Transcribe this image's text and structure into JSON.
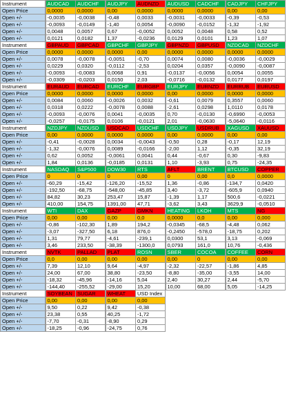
{
  "labels": {
    "instrument": "Instrument",
    "open_price": "Open Price",
    "open_pm": "Open +/-"
  },
  "colors": {
    "green": "#00b050",
    "red": "#ff0000",
    "orange_open_price": "#ffc000",
    "blue_label": "#bdd7ee"
  },
  "blocks": [
    {
      "instruments": [
        {
          "name": "AUDCAD",
          "color": "green"
        },
        {
          "name": "AUDCHF",
          "color": "green"
        },
        {
          "name": "AUDJPY",
          "color": "green"
        },
        {
          "name": "AUDNZD",
          "color": "red"
        },
        {
          "name": "AUDUSD",
          "color": "green"
        },
        {
          "name": "CADCHF",
          "color": "green"
        },
        {
          "name": "CADJPY",
          "color": "green"
        },
        {
          "name": "CHFJPY",
          "color": "green"
        }
      ],
      "open_price": [
        "0,0000",
        "0,0000",
        "0,00",
        "0,0000",
        "0,0000",
        "0,0000",
        "0,00",
        "0,00"
      ],
      "rows": [
        [
          "-0,0035",
          "-0,0038",
          "-0,48",
          "0,0033",
          "-0,0031",
          "-0,0033",
          "-0,39",
          "-0,53"
        ],
        [
          "-0,0093",
          "-0,0149",
          "-1,40",
          "0,0054",
          "-0,0090",
          "-0,0152",
          "-1,32",
          "-1,92"
        ],
        [
          "0,0048",
          "0,0057",
          "0,67",
          "-0,0052",
          "0,0052",
          "0,0048",
          "0,58",
          "0,52"
        ],
        [
          "0,0121",
          "0,0182",
          "1,37",
          "-0,0236",
          "0,0129",
          "0,0101",
          "1,23",
          "1,07"
        ]
      ]
    },
    {
      "instruments": [
        {
          "name": "GBPAUD",
          "color": "red"
        },
        {
          "name": "GBPCAD",
          "color": "red"
        },
        {
          "name": "GBPCHF",
          "color": "green"
        },
        {
          "name": "GBPJPY",
          "color": "green"
        },
        {
          "name": "GBPNZD",
          "color": "red"
        },
        {
          "name": "GBPUSD",
          "color": "red"
        },
        {
          "name": "NZDCAD",
          "color": "green"
        },
        {
          "name": "NZDCHF",
          "color": "green"
        }
      ],
      "open_price": [
        "0,0000",
        "0,0000",
        "0,0000",
        "0,00",
        "0,0000",
        "0,0000",
        "0,0000",
        "0,0000"
      ],
      "rows": [
        [
          "0,0078",
          "-0,0078",
          "-0,0051",
          "-0,70",
          "0,0074",
          "0,0080",
          "-0,0036",
          "-0,0029"
        ],
        [
          "0,0229",
          "0,0320",
          "-0,0112",
          "-2,53",
          "0,0204",
          "0,0357",
          "-0,0090",
          "-0,0087"
        ],
        [
          "-0,0093",
          "-0,0083",
          "0,0068",
          "0,91",
          "-0,0137",
          "-0,0056",
          "0,0054",
          "0,0055"
        ],
        [
          "-0,0309",
          "-0,0203",
          "0,0150",
          "2,03",
          "-0,0716",
          "-0,0132",
          "0,0177",
          "0,0197"
        ]
      ]
    },
    {
      "instruments": [
        {
          "name": "EURAUD",
          "color": "red"
        },
        {
          "name": "EURCAD",
          "color": "red"
        },
        {
          "name": "EURCHF",
          "color": "green"
        },
        {
          "name": "EURGBP",
          "color": "red"
        },
        {
          "name": "EURJPY",
          "color": "green"
        },
        {
          "name": "EURNZD",
          "color": "red"
        },
        {
          "name": "EURRUB",
          "color": "red"
        },
        {
          "name": "EURUSD",
          "color": "red"
        }
      ],
      "open_price": [
        "0,0000",
        "0,0000",
        "0,0000",
        "0,0000",
        "0,00",
        "0,0000",
        "0,0000",
        "0,0000"
      ],
      "rows": [
        [
          "0,0084",
          "0,0060",
          "-0,0026",
          "0,0032",
          "-0,61",
          "0,0079",
          "0,3557",
          "0,0060"
        ],
        [
          "0,0318",
          "0,0222",
          "-0,0078",
          "0,0088",
          "-2,61",
          "0,0298",
          "1,0110",
          "0,0178"
        ],
        [
          "-0,0093",
          "-0,0076",
          "0,0041",
          "-0,0035",
          "0,70",
          "-0,0130",
          "-0,6990",
          "-0,0053"
        ],
        [
          "-0,0257",
          "-0,0175",
          "0,0106",
          "-0,0121",
          "2,01",
          "-0,0630",
          "-5,0640",
          "-0,0116"
        ]
      ]
    },
    {
      "instruments": [
        {
          "name": "NZDJPY",
          "color": "green"
        },
        {
          "name": "NZDUSD",
          "color": "green"
        },
        {
          "name": "USDCAD",
          "color": "red"
        },
        {
          "name": "USDCHF",
          "color": "green"
        },
        {
          "name": "USDJPY",
          "color": "green"
        },
        {
          "name": "USDRUB",
          "color": "red"
        },
        {
          "name": "XAGUSD",
          "color": "green"
        },
        {
          "name": "XAUUSD",
          "color": "red"
        }
      ],
      "open_price": [
        "0,00",
        "0,0000",
        "0,0000",
        "0,0000",
        "0,00",
        "0,0000",
        "0,00",
        "0,00"
      ],
      "rows": [
        [
          "-0,41",
          "-0,0028",
          "0,0034",
          "-0,0043",
          "-0,50",
          "0,28",
          "-0,17",
          "12,19"
        ],
        [
          "-1,32",
          "-0,0076",
          "0,0089",
          "-0,0166",
          "-2,00",
          "1,12",
          "-0,35",
          "32,19"
        ],
        [
          "0,62",
          "0,0052",
          "-0,0061",
          "0,0041",
          "0,44",
          "-0,67",
          "0,30",
          "-9,83"
        ],
        [
          "1,84",
          "0,0136",
          "-0,0185",
          "0,0131",
          "1,10",
          "-3,93",
          "0,75",
          "-24,35"
        ]
      ]
    },
    {
      "instruments": [
        {
          "name": "NASDAQ",
          "color": "green"
        },
        {
          "name": "S&P500",
          "color": "green"
        },
        {
          "name": "DOW30",
          "color": "green"
        },
        {
          "name": "RTS",
          "color": "green"
        },
        {
          "name": "AFLT",
          "color": "red"
        },
        {
          "name": "BRENT",
          "color": "green"
        },
        {
          "name": "BTCUSD",
          "color": "green"
        },
        {
          "name": "COPPER",
          "color": "red"
        }
      ],
      "open_price": [
        "0",
        "0",
        "0",
        "0,00",
        "0",
        "0,00",
        "0,0",
        "0,0000"
      ],
      "rows": [
        [
          "-60,29",
          "-15,42",
          "-126,20",
          "-15,52",
          "1,36",
          "-0,86",
          "-134,7",
          "0,0420"
        ],
        [
          "-192,50",
          "-68,75",
          "-548,00",
          "-45,85",
          "3,40",
          "-3,72",
          "-605,9",
          "0,0940"
        ],
        [
          "84,82",
          "30,23",
          "253,47",
          "15,87",
          "-1,39",
          "1,17",
          "500,6",
          "-0,0221"
        ],
        [
          "410,00",
          "154,75",
          "1391,00",
          "47,71",
          "-3,62",
          "3,43",
          "3629,9",
          "-0,0510"
        ]
      ]
    },
    {
      "instruments": [
        {
          "name": "WTI",
          "color": "green"
        },
        {
          "name": "DAX",
          "color": "green"
        },
        {
          "name": "GAZP",
          "color": "red"
        },
        {
          "name": "GMKN",
          "color": "red"
        },
        {
          "name": "HEATING",
          "color": "green"
        },
        {
          "name": "LKOH",
          "color": "green"
        },
        {
          "name": "MTS",
          "color": "green"
        },
        {
          "name": "NG",
          "color": "red"
        }
      ],
      "open_price": [
        "0,00",
        "0,00",
        "0,00",
        "0,0",
        "0,0000",
        "0,0",
        "0,00",
        "0,000"
      ],
      "rows": [
        [
          "-0,86",
          "-102,30",
          "1,89",
          "194,2",
          "-0,0345",
          "-68,5",
          "-4,48",
          "0,062"
        ],
        [
          "-3,07",
          "-327,50",
          "6,18",
          "876,0",
          "-0,2450",
          "-578,0",
          "-18,75",
          "0,202"
        ],
        [
          "1,31",
          "79,77",
          "-4,61",
          "-239,1",
          "0,0300",
          "53,1",
          "3,13",
          "-0,069"
        ],
        [
          "3,46",
          "233,50",
          "-38,39",
          "-1300,0",
          "0,0793",
          "161,0",
          "10,76",
          "-0,436"
        ]
      ]
    },
    {
      "instruments": [
        {
          "name": "NVTK",
          "color": "red"
        },
        {
          "name": "PALLAD",
          "color": "red"
        },
        {
          "name": "PLAT",
          "color": "red"
        },
        {
          "name": "ROSN",
          "color": "green"
        },
        {
          "name": "SBER",
          "color": "green"
        },
        {
          "name": "COCOA",
          "color": "green"
        },
        {
          "name": "COFFEE",
          "color": "green"
        },
        {
          "name": "CORN",
          "color": "red"
        }
      ],
      "open_price": [
        "0,0",
        "0,00",
        "0,00",
        "0,00",
        "0,00",
        "0",
        "0,00",
        "0,00"
      ],
      "rows": [
        [
          "7,39",
          "12,10",
          "9,64",
          "-4,97",
          "-2,32",
          "-22,57",
          "-1,86",
          "4,85"
        ],
        [
          "24,00",
          "67,00",
          "38,80",
          "-23,50",
          "-8,80",
          "-35,00",
          "-3,55",
          "14,00"
        ],
        [
          "-18,32",
          "-45,96",
          "-14,16",
          "5,04",
          "2,40",
          "30,27",
          "2,44",
          "-5,70"
        ],
        [
          "-144,40",
          "-255,52",
          "-29,00",
          "15,20",
          "10,00",
          "68,00",
          "5,05",
          "-14,25"
        ]
      ]
    },
    {
      "instruments": [
        {
          "name": "SOYBEAN",
          "color": "red"
        },
        {
          "name": "SUGAR",
          "color": "red"
        },
        {
          "name": "WHEAT",
          "color": "red"
        },
        {
          "name": "USD Index",
          "color": "white"
        }
      ],
      "open_price": [
        "0,00",
        "0,00",
        "0,00",
        "0,00"
      ],
      "rows": [
        [
          "9,50",
          "0,22",
          "9,42",
          "-0,38"
        ],
        [
          "23,38",
          "0,55",
          "40,25",
          "-1,72"
        ],
        [
          "-7,70",
          "-0,31",
          "-8,90",
          "0,29"
        ],
        [
          "-18,25",
          "-0,96",
          "-24,75",
          "0,76"
        ]
      ]
    }
  ]
}
